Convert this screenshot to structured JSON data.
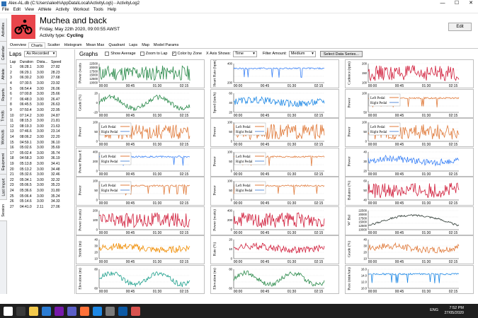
{
  "window": {
    "title": "Alex-AL.db (C:\\Users\\alexh\\AppData\\Local\\ActivityLog\\) - ActivityLog2",
    "controls": [
      "—",
      "☐",
      "✕"
    ]
  },
  "menu": [
    "File",
    "Edit",
    "View",
    "Athlete",
    "Activity",
    "Workout",
    "Tools",
    "Help"
  ],
  "sidebar_tabs": [
    "Activities",
    "Calendar",
    "Athlete",
    "Reports",
    "Trends",
    "Workouts",
    "Equipment",
    "Last Import",
    "Session"
  ],
  "header": {
    "title": "Muchea and back",
    "date": "Friday, May 22th 2020, 09:00:55 AWST",
    "type_label": "Activity type:",
    "type_value": "Cycling",
    "edit": "Edit"
  },
  "tabs": [
    "Overview",
    "Charts",
    "Scatter",
    "Histogram",
    "Mean Max",
    "Quadrant",
    "Laps",
    "Map",
    "Model Params"
  ],
  "laps": {
    "title": "Laps",
    "mode": "As Recorded",
    "columns": [
      "Lap",
      "Duration",
      "Dista...",
      "Speed"
    ],
    "rows": [
      [
        "1",
        "06:28.1",
        "3.00",
        "27.82"
      ],
      [
        "2",
        "06:29.1",
        "3.00",
        "28.23"
      ],
      [
        "3",
        "06:30.2",
        "3.00",
        "27.68"
      ],
      [
        "4",
        "07:30.5",
        "3.00",
        "23.92"
      ],
      [
        "5",
        "06:54.4",
        "3.00",
        "26.06"
      ],
      [
        "6",
        "07:00.8",
        "3.00",
        "25.66"
      ],
      [
        "7",
        "06:48.0",
        "3.00",
        "26.47"
      ],
      [
        "8",
        "06:45.5",
        "3.00",
        "26.63"
      ],
      [
        "9",
        "07:50.4",
        "3.00",
        "22.95"
      ],
      [
        "10",
        "07:14.2",
        "3.00",
        "24.87"
      ],
      [
        "11",
        "08:15.3",
        "3.00",
        "21.81"
      ],
      [
        "12",
        "08:19.3",
        "3.00",
        "21.63"
      ],
      [
        "13",
        "07:46.6",
        "3.00",
        "23.14"
      ],
      [
        "14",
        "08:06.2",
        "3.00",
        "22.20"
      ],
      [
        "15",
        "04:59.1",
        "3.00",
        "36.10"
      ],
      [
        "16",
        "05:02.6",
        "3.00",
        "35.69"
      ],
      [
        "17",
        "05:02.4",
        "3.00",
        "35.74"
      ],
      [
        "18",
        "04:58.3",
        "3.00",
        "36.19"
      ],
      [
        "19",
        "05:13.8",
        "3.00",
        "34.41"
      ],
      [
        "20",
        "05:13.2",
        "3.00",
        "34.48"
      ],
      [
        "21",
        "05:32.6",
        "3.00",
        "32.46"
      ],
      [
        "22",
        "05:34.1",
        "3.00",
        "32.32"
      ],
      [
        "23",
        "05:06.5",
        "3.00",
        "35.23"
      ],
      [
        "24",
        "05:36.6",
        "3.00",
        "31.80"
      ],
      [
        "25",
        "05:06.4",
        "3.00",
        "35.24"
      ],
      [
        "26",
        "05:14.6",
        "3.00",
        "34.33"
      ],
      [
        "27",
        "04:41.0",
        "2.11",
        "27.06"
      ]
    ]
  },
  "graphs": {
    "title": "Graphs",
    "show_average": "Show Average",
    "zoom_to_lap": "Zoom to Lap",
    "color_by_zone": "Color by Zone",
    "x_axis_label": "X Axis Shows:",
    "x_axis_value": "Time",
    "filter_label": "Filter Amount:",
    "filter_value": "Medium",
    "select_btn": "Select Data Series...",
    "time_ticks": [
      "00:00",
      "00:45",
      "01:30",
      "02:15"
    ]
  },
  "panels": [
    {
      "ylabel": "Power (watts",
      "color": "#2a8a4a",
      "style": "spiky",
      "ticks": [
        "22500",
        "20000",
        "17500",
        "15000",
        "12500",
        "10000"
      ],
      "legend": []
    },
    {
      "ylabel": "Heart Rate (bpm)",
      "color": "#3b82f6",
      "style": "flat",
      "ticks": [
        "400",
        "200"
      ],
      "legend": []
    },
    {
      "ylabel": "Cadence (rpm)",
      "color": "#d11f3c",
      "style": "spiky",
      "ticks": [
        "200",
        "150",
        "100"
      ],
      "legend": []
    },
    {
      "ylabel": "Grade (%)",
      "color": "#2a8a4a",
      "style": "wave",
      "ticks": [
        "20",
        "0",
        "-20"
      ],
      "legend": []
    },
    {
      "ylabel": "Speed (km/h)",
      "color": "#1e88e5",
      "style": "band",
      "ticks": [
        "60",
        "40",
        "20"
      ],
      "legend": []
    },
    {
      "ylabel": "Power",
      "color": "#e07a3a",
      "style": "flat",
      "ticks": [
        "100",
        "50"
      ],
      "legend": [
        "Left Pedal",
        "Right Pedal"
      ]
    },
    {
      "ylabel": "Power",
      "color": "#e07a3a",
      "style": "spiky",
      "ticks": [
        "100",
        "50",
        "0"
      ],
      "legend": [
        "Left Pedal",
        "Right Pedal"
      ]
    },
    {
      "ylabel": "Power",
      "color": "#e07a3a",
      "style": "spiky",
      "ticks": [
        "100",
        "50",
        "0"
      ],
      "legend": [
        "Left Pedal",
        "Right Pedal"
      ]
    },
    {
      "ylabel": "Power",
      "color": "#e07a3a",
      "style": "spiky",
      "ticks": [
        "100",
        "50",
        "0"
      ],
      "legend": [
        "Left Pedal",
        "Right Pedal"
      ]
    },
    {
      "ylabel": "Power Phase E",
      "color": "#3b82f6",
      "style": "flat",
      "ticks": [
        "400",
        "200",
        "0"
      ],
      "legend": [
        "Left Pedal",
        "Right Pedal"
      ]
    },
    {
      "ylabel": "Power",
      "color": "#e07a3a",
      "style": "flat",
      "ticks": [
        "100",
        "50",
        "0"
      ],
      "legend": [
        "Left Pedal",
        "Right Pedal"
      ]
    },
    {
      "ylabel": "Power",
      "color": "#3b82f6",
      "style": "band",
      "ticks": [
        "40",
        "30",
        "20"
      ],
      "legend": []
    },
    {
      "ylabel": "Power",
      "color": "#e07a3a",
      "style": "flat",
      "ticks": [
        "100",
        "50",
        "0"
      ],
      "legend": [
        "Left Pedal",
        "Right Pedal"
      ]
    },
    {
      "ylabel": "Power",
      "color": "#e07a3a",
      "style": "flat",
      "ticks": [
        "100",
        "50",
        "0"
      ],
      "legend": [
        "Left Pedal",
        "Right Pedal"
      ]
    },
    {
      "ylabel": "Balance (%)",
      "color": "#d11f3c",
      "style": "spiky",
      "ticks": [
        "60",
        "50",
        "40"
      ],
      "legend": []
    },
    {
      "ylabel": "Power (watts)",
      "color": "#d11f3c",
      "style": "spiky",
      "ticks": [
        "200",
        "100",
        "0"
      ],
      "legend": []
    },
    {
      "ylabel": "Power (watts)",
      "color": "#d11f3c",
      "style": "spiky",
      "ticks": [
        "400",
        "200",
        "0"
      ],
      "legend": []
    },
    {
      "ylabel": "W' Bal",
      "color": "#2f3b35",
      "style": "wbal",
      "ticks": [
        "22500",
        "20000",
        "17500",
        "15000",
        "12500",
        "10000"
      ],
      "legend": []
    },
    {
      "ylabel": "Stride (m)",
      "color": "#f08c00",
      "style": "band",
      "ticks": [
        "40",
        "30",
        "20",
        "10"
      ],
      "legend": []
    },
    {
      "ylabel": "Rate (%)",
      "color": "#d11f3c",
      "style": "band",
      "ticks": [
        "20",
        "10",
        "0"
      ],
      "legend": []
    },
    {
      "ylabel": "Grade (%)",
      "color": "#e07a3a",
      "style": "band",
      "ticks": [
        "40",
        "30",
        "20",
        "10"
      ],
      "legend": []
    },
    {
      "ylabel": "Elevation (m)",
      "color": "#1a9e8a",
      "style": "wave",
      "ticks": [
        "80",
        "60"
      ],
      "legend": []
    },
    {
      "ylabel": "Elevation (m)",
      "color": "#2a8a4a",
      "style": "wave",
      "ticks": [
        "80",
        "60"
      ],
      "legend": []
    },
    {
      "ylabel": "Pace (min/km)",
      "color": "#1e88e5",
      "style": "flat",
      "ticks": [
        "16.0",
        "14.0",
        "12.0",
        "10.0"
      ],
      "legend": []
    }
  ],
  "taskbar": {
    "lang": "ENG",
    "time": "7:52 PM",
    "date": "27/05/2020"
  }
}
